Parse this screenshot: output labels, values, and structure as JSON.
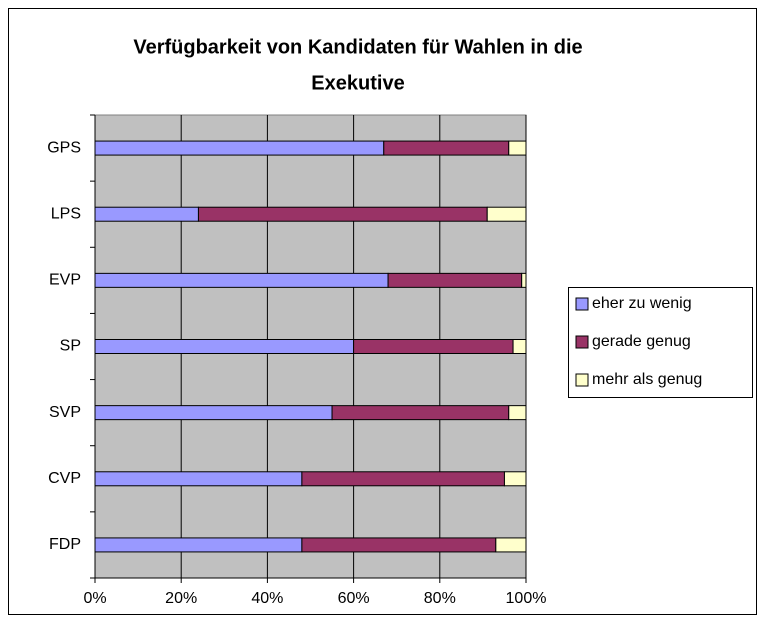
{
  "chart_data": {
    "type": "stacked_barh",
    "title": [
      "Verfügbarkeit von Kandidaten für Wahlen in die",
      "Exekutive"
    ],
    "categories": [
      "GPS",
      "LPS",
      "EVP",
      "SP",
      "SVP",
      "CVP",
      "FDP"
    ],
    "series": [
      {
        "name": "eher zu wenig",
        "color": "#9999ff",
        "values": [
          67,
          24,
          68,
          60,
          55,
          48,
          48
        ]
      },
      {
        "name": "gerade genug",
        "color": "#993366",
        "values": [
          29,
          67,
          31,
          37,
          41,
          47,
          45
        ]
      },
      {
        "name": "mehr als genug",
        "color": "#ffffcc",
        "values": [
          4,
          9,
          1,
          3,
          4,
          5,
          7
        ]
      }
    ],
    "xlim": [
      0,
      100
    ],
    "xticks": [
      {
        "value": 0,
        "label": "0%"
      },
      {
        "value": 20,
        "label": "20%"
      },
      {
        "value": 40,
        "label": "40%"
      },
      {
        "value": 60,
        "label": "60%"
      },
      {
        "value": 80,
        "label": "80%"
      },
      {
        "value": 100,
        "label": "100%"
      }
    ],
    "grid": true,
    "legend": "right"
  }
}
